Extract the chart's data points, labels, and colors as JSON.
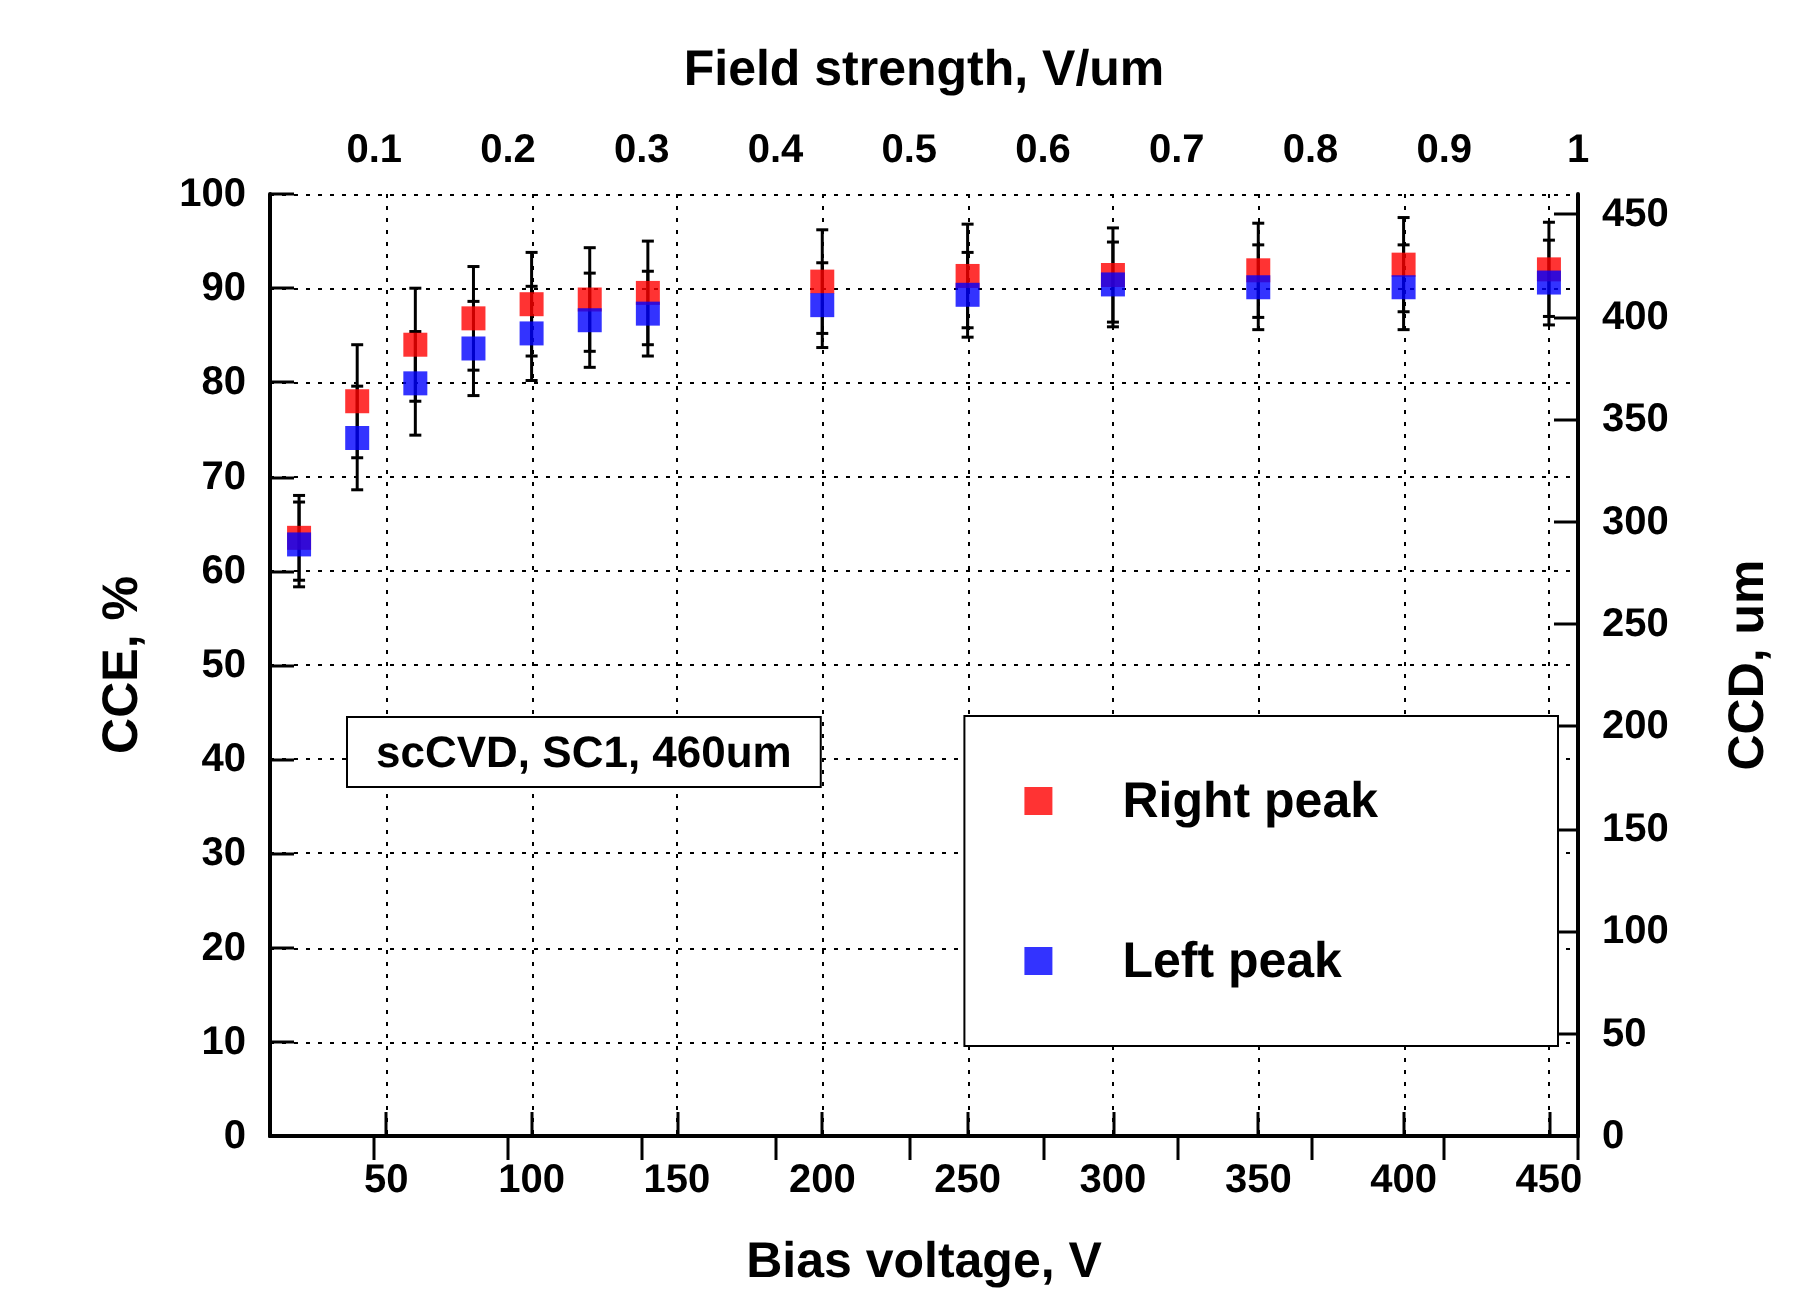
{
  "chart_data": {
    "type": "scatter",
    "xlabel": "Bias voltage, V",
    "ylabel": "CCE, %",
    "y2label": "CCD, um",
    "x2label": "Field strength, V/um",
    "x": [
      20,
      40,
      60,
      80,
      100,
      120,
      140,
      200,
      250,
      300,
      350,
      400,
      450
    ],
    "series": [
      {
        "name": "Right peak",
        "color": "#ff0000",
        "values": [
          63.5,
          78.0,
          84.0,
          86.8,
          88.3,
          88.8,
          89.5,
          90.7,
          91.3,
          91.4,
          91.9,
          92.5,
          92.0
        ],
        "errors": [
          4.5,
          6,
          6,
          5.5,
          5.5,
          5.5,
          5.5,
          5.5,
          5.5,
          5,
          5,
          5,
          5
        ]
      },
      {
        "name": "Left peak",
        "color": "#0000ff",
        "values": [
          62.8,
          74.1,
          79.9,
          83.6,
          85.2,
          86.6,
          87.3,
          88.2,
          89.3,
          90.4,
          90.1,
          90.1,
          90.6
        ],
        "errors": [
          4.5,
          5.5,
          5.5,
          5,
          5,
          5,
          4.5,
          4.5,
          4.5,
          4.5,
          4.5,
          4.5,
          4.5
        ]
      }
    ],
    "xlim": [
      10,
      460
    ],
    "xticks": [
      50,
      100,
      150,
      200,
      250,
      300,
      350,
      400,
      450
    ],
    "x2lim": [
      0.022,
      1
    ],
    "x2ticks": [
      0.1,
      0.2,
      0.3,
      0.4,
      0.5,
      0.6,
      0.7,
      0.8,
      0.9,
      1
    ],
    "ylim": [
      0,
      100
    ],
    "yticks": [
      0,
      10,
      20,
      30,
      40,
      50,
      60,
      70,
      80,
      90,
      100
    ],
    "y2lim": [
      0,
      460
    ],
    "y2ticks": [
      0,
      50,
      100,
      150,
      200,
      250,
      300,
      350,
      400,
      450
    ],
    "annotations": [
      "scCVD, SC1, 460um"
    ],
    "grid": true,
    "legend": "bottom right",
    "marker": "square"
  }
}
